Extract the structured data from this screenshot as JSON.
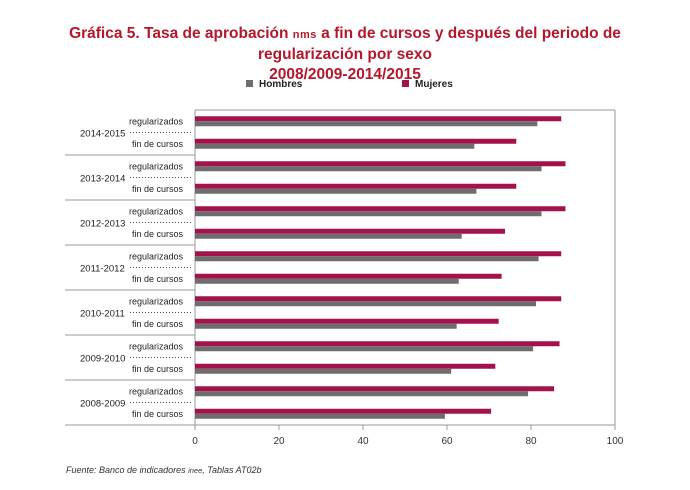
{
  "title": {
    "part1": "Gráfica 5. Tasa de aprobación ",
    "nms": "nms",
    "part2": " a fin de cursos y después del periodo de regularización por sexo",
    "line2": "2008/2009-2014/2015"
  },
  "source": {
    "label": "Fuente:",
    "text1": " Banco de indicadores ",
    "inee": "inee",
    "text2": ", Tablas AT02b"
  },
  "colors": {
    "hombres": "#6d6d6d",
    "mujeres": "#a3124d",
    "axis": "#9a9a9a"
  },
  "chart_data": {
    "type": "bar",
    "orientation": "horizontal",
    "xlim": [
      0,
      100
    ],
    "xticks": [
      0,
      20,
      40,
      60,
      80,
      100
    ],
    "legend": {
      "position": "top-center",
      "entries": [
        "Hombres",
        "Mujeres"
      ]
    },
    "groups": [
      {
        "label": "2014-2015",
        "rows": [
          {
            "label": "regularizados",
            "hombres": 81.5,
            "mujeres": 87.2
          },
          {
            "label": "fin de cursos",
            "hombres": 66.5,
            "mujeres": 76.5
          }
        ]
      },
      {
        "label": "2013-2014",
        "rows": [
          {
            "label": "regularizados",
            "hombres": 82.5,
            "mujeres": 88.2
          },
          {
            "label": "fin de cursos",
            "hombres": 67.0,
            "mujeres": 76.5
          }
        ]
      },
      {
        "label": "2012-2013",
        "rows": [
          {
            "label": "regularizados",
            "hombres": 82.5,
            "mujeres": 88.2
          },
          {
            "label": "fin de cursos",
            "hombres": 63.5,
            "mujeres": 73.8
          }
        ]
      },
      {
        "label": "2011-2012",
        "rows": [
          {
            "label": "regularizados",
            "hombres": 81.8,
            "mujeres": 87.2
          },
          {
            "label": "fin de cursos",
            "hombres": 62.8,
            "mujeres": 73.0
          }
        ]
      },
      {
        "label": "2010-2011",
        "rows": [
          {
            "label": "regularizados",
            "hombres": 81.2,
            "mujeres": 87.2
          },
          {
            "label": "fin de cursos",
            "hombres": 62.3,
            "mujeres": 72.3
          }
        ]
      },
      {
        "label": "2009-2010",
        "rows": [
          {
            "label": "regularizados",
            "hombres": 80.5,
            "mujeres": 86.8
          },
          {
            "label": "fin de cursos",
            "hombres": 61.0,
            "mujeres": 71.5
          }
        ]
      },
      {
        "label": "2008-2009",
        "rows": [
          {
            "label": "regularizados",
            "hombres": 79.3,
            "mujeres": 85.5
          },
          {
            "label": "fin de cursos",
            "hombres": 59.5,
            "mujeres": 70.5
          }
        ]
      }
    ]
  }
}
